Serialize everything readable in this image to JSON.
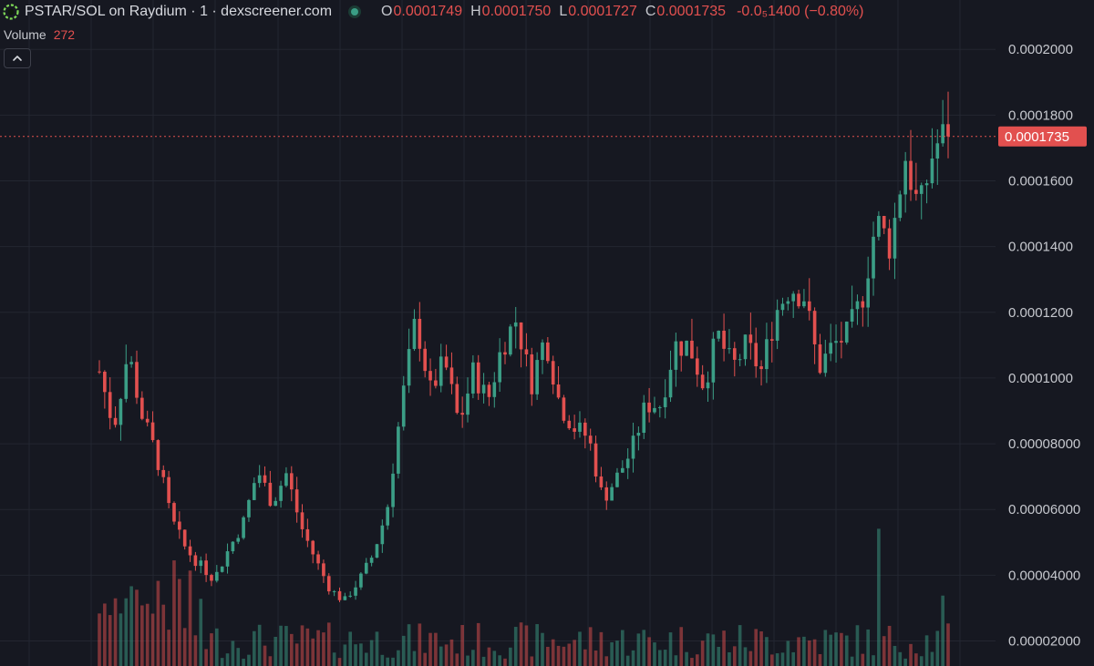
{
  "header": {
    "title": "PSTAR/SOL on Raydium · 1 · dexscreener.com",
    "ohlc": [
      {
        "key": "O",
        "value": "0.0001749"
      },
      {
        "key": "H",
        "value": "0.0001750"
      },
      {
        "key": "L",
        "value": "0.0001727"
      },
      {
        "key": "C",
        "value": "0.0001735"
      }
    ],
    "change": "-0.0₅1400 (−0.80%)"
  },
  "volume": {
    "label": "Volume",
    "value": "272"
  },
  "colors": {
    "background": "#161821",
    "up": "#3b9e86",
    "down": "#e2504f",
    "grid": "#232631",
    "axis_text": "#c6c8ce"
  },
  "icons": {
    "logo": "dexscreener-logo-icon",
    "live": "live-status-dot-icon",
    "collapse": "chevron-up-icon"
  },
  "chart_data": {
    "type": "candlestick",
    "title": "PSTAR/SOL on Raydium",
    "interval": "1",
    "y_ticks": [
      "0.00002000",
      "0.00004000",
      "0.00006000",
      "0.00008000",
      "0.0001000",
      "0.0001200",
      "0.0001400",
      "0.0001600",
      "0.0001800",
      "0.0002000"
    ],
    "ylim": [
      1.82e-05,
      0.000202
    ],
    "current_price": "0.0001735",
    "current_price_value": 0.0001735,
    "grid": true,
    "close_path": [
      0.000102,
      8.5e-05,
      0.000108,
      8.8e-05,
      7.6e-05,
      5.7e-05,
      4.8e-05,
      4.3e-05,
      3.9e-05,
      4.8e-05,
      5.6e-05,
      7.2e-05,
      6.2e-05,
      7.1e-05,
      5.5e-05,
      4.5e-05,
      3.6e-05,
      3.2e-05,
      3.8e-05,
      4.6e-05,
      6e-05,
      9.2e-05,
      0.000118,
      9.6e-05,
      0.000105,
      8.6e-05,
      0.000102,
      9.3e-05,
      0.00011,
      0.000118,
      9.8e-05,
      0.000113,
      9.2e-05,
      8.5e-05,
      8.2e-05,
      6.3e-05,
      7e-05,
      7.8e-05,
      9.2e-05,
      9.2e-05,
      0.00011,
      0.00011,
      9.8e-05,
      0.000113,
      0.000103,
      0.00011,
      0.000102,
      0.00012,
      0.000128,
      0.000125,
      0.000103,
      0.00011,
      0.000113,
      0.000124,
      0.000148,
      0.00014,
      0.000168,
      0.00015,
      0.00017,
      0.000175
    ],
    "candle_count": 160,
    "volume_max_label": "272"
  }
}
